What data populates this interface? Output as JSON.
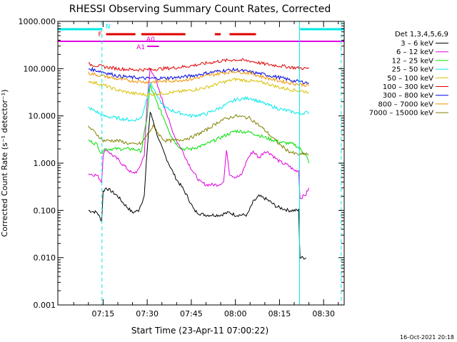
{
  "chart_data": {
    "type": "line",
    "title": "RHESSI Observing Summary Count Rates, Corrected",
    "ylabel": "Corrected Count Rate (s⁻¹ detector⁻¹)",
    "xlabel": "Start Time (23-Apr-11 07:00:22)",
    "timestamp": "16-Oct-2021 20:18",
    "y_scale": "log",
    "ylim": [
      0.001,
      1000
    ],
    "xlim_minutes": [
      -0.4,
      97
    ],
    "y_ticks": [
      {
        "value": 0.001,
        "label": "0.001"
      },
      {
        "value": 0.01,
        "label": "0.010"
      },
      {
        "value": 0.1,
        "label": "0.100"
      },
      {
        "value": 1,
        "label": "1.000"
      },
      {
        "value": 10,
        "label": "10.000"
      },
      {
        "value": 100,
        "label": "100.000"
      },
      {
        "value": 1000,
        "label": "1000.000"
      }
    ],
    "x_ticks": [
      {
        "value": 15,
        "label": "07:15"
      },
      {
        "value": 30,
        "label": "07:30"
      },
      {
        "value": 45,
        "label": "07:45"
      },
      {
        "value": 60,
        "label": "08:00"
      },
      {
        "value": 75,
        "label": "08:15"
      },
      {
        "value": 90,
        "label": "08:30"
      }
    ],
    "legend": {
      "title": "Det 1,3,4,5,6,9",
      "placement": "right",
      "entries": [
        {
          "label": "3 – 6 keV",
          "color": "#000000"
        },
        {
          "label": "6 – 12 keV",
          "color": "#e000e0"
        },
        {
          "label": "12 – 25 keV",
          "color": "#00e000"
        },
        {
          "label": "25 – 50 keV",
          "color": "#00e8e8"
        },
        {
          "label": "50 – 100 keV",
          "color": "#d8c000"
        },
        {
          "label": "100 – 300 keV",
          "color": "#e00000"
        },
        {
          "label": "300 – 800 keV",
          "color": "#0000e0"
        },
        {
          "label": "800 – 7000 keV",
          "color": "#f09000"
        },
        {
          "label": "7000 – 15000 keV",
          "color": "#808000"
        }
      ]
    },
    "flag_labels": {
      "night": "N",
      "flare": "F",
      "attenuator_0": "A0",
      "attenuator_1": "A1"
    },
    "flag_colors": {
      "night": "#00e8e8",
      "flare": "#e00000",
      "attenuator": "#e000e0"
    },
    "flag_segments": {
      "night": [
        [
          -0.4,
          14.6
        ],
        [
          82,
          97
        ]
      ],
      "flare": [
        [
          16,
          26
        ],
        [
          28,
          43
        ],
        [
          53,
          55
        ],
        [
          58,
          67
        ]
      ],
      "saa_line": [
        [
          -0.4,
          97
        ]
      ],
      "attenuator_0": [
        [
          29,
          35
        ]
      ],
      "attenuator_1": [
        [
          30,
          34
        ]
      ]
    },
    "vlines_dashed": [
      14.6,
      96
    ],
    "vlines_solid": [
      81.8
    ],
    "series": [
      {
        "name": "3 – 6 keV",
        "color": "#000000",
        "x": [
          10,
          13,
          14.5,
          15,
          16,
          18,
          20,
          22,
          25,
          27,
          29,
          30,
          31,
          32,
          34,
          36,
          38,
          40,
          42,
          44,
          46,
          48,
          50,
          52,
          54,
          55,
          56,
          58,
          60,
          62,
          64,
          66,
          68,
          70,
          72,
          74,
          76,
          78,
          80,
          81.5,
          82,
          84
        ],
        "y": [
          0.1,
          0.09,
          0.06,
          0.25,
          0.3,
          0.25,
          0.2,
          0.14,
          0.09,
          0.1,
          0.2,
          2,
          12,
          8,
          3,
          1.5,
          0.8,
          0.45,
          0.3,
          0.18,
          0.1,
          0.085,
          0.08,
          0.08,
          0.08,
          0.08,
          0.085,
          0.09,
          0.08,
          0.08,
          0.08,
          0.15,
          0.2,
          0.18,
          0.15,
          0.12,
          0.11,
          0.1,
          0.1,
          0.1,
          0.01,
          0.01
        ]
      },
      {
        "name": "6 – 12 keV",
        "color": "#e000e0",
        "x": [
          10,
          13,
          14.5,
          15,
          16,
          18,
          20,
          22,
          25,
          27,
          29,
          30,
          31,
          32,
          34,
          36,
          38,
          40,
          42,
          44,
          46,
          48,
          50,
          52,
          54,
          56,
          57,
          58,
          60,
          62,
          64,
          66,
          68,
          70,
          72,
          74,
          76,
          78,
          80,
          81.5,
          82,
          84,
          85
        ],
        "y": [
          0.6,
          0.55,
          0.4,
          1.5,
          2,
          1.5,
          1.2,
          0.9,
          0.6,
          0.7,
          1.5,
          20,
          100,
          80,
          35,
          15,
          6,
          3,
          1.8,
          1,
          0.6,
          0.4,
          0.35,
          0.35,
          0.35,
          0.4,
          2,
          0.6,
          0.5,
          0.55,
          1.2,
          1.8,
          1.3,
          1.8,
          1.6,
          1.2,
          1,
          0.9,
          0.7,
          0.7,
          0.18,
          0.22,
          0.3
        ]
      },
      {
        "name": "12 – 25 keV",
        "color": "#00e000",
        "x": [
          10,
          13,
          14.5,
          15,
          20,
          25,
          28,
          30,
          31,
          32,
          34,
          36,
          38,
          40,
          42,
          45,
          50,
          55,
          60,
          65,
          70,
          75,
          80,
          82,
          84,
          85
        ],
        "y": [
          3,
          2.5,
          1.5,
          2,
          2,
          2,
          1.8,
          10,
          45,
          30,
          15,
          8,
          4,
          2.5,
          2,
          2,
          2.5,
          3.5,
          4.8,
          4.5,
          3.5,
          2.8,
          2.5,
          2,
          1.5,
          1
        ]
      },
      {
        "name": "25 – 50 keV",
        "color": "#00e8e8",
        "x": [
          10,
          13,
          15,
          20,
          25,
          28,
          30,
          31,
          32,
          34,
          36,
          40,
          45,
          50,
          55,
          60,
          65,
          70,
          75,
          80,
          82,
          84,
          85
        ],
        "y": [
          15,
          12,
          10,
          9,
          8,
          9,
          25,
          50,
          40,
          22,
          15,
          12,
          10,
          11,
          15,
          22,
          24,
          18,
          14,
          12,
          11,
          12,
          11
        ]
      },
      {
        "name": "50 – 100 keV",
        "color": "#d8c000",
        "x": [
          10,
          15,
          20,
          25,
          30,
          35,
          40,
          45,
          50,
          55,
          60,
          65,
          70,
          75,
          80,
          85
        ],
        "y": [
          55,
          45,
          35,
          30,
          28,
          30,
          32,
          35,
          40,
          50,
          60,
          55,
          50,
          40,
          35,
          32
        ]
      },
      {
        "name": "100 – 300 keV",
        "color": "#e00000",
        "x": [
          10,
          15,
          20,
          25,
          30,
          35,
          40,
          45,
          50,
          55,
          60,
          65,
          70,
          75,
          80,
          85
        ],
        "y": [
          125,
          110,
          100,
          95,
          95,
          100,
          105,
          115,
          130,
          145,
          155,
          145,
          125,
          115,
          105,
          100
        ]
      },
      {
        "name": "300 – 800 keV",
        "color": "#0000e0",
        "x": [
          10,
          15,
          20,
          25,
          30,
          35,
          40,
          45,
          50,
          55,
          60,
          65,
          70,
          75,
          80,
          85
        ],
        "y": [
          100,
          85,
          70,
          65,
          62,
          63,
          65,
          70,
          80,
          90,
          95,
          85,
          75,
          65,
          55,
          50
        ]
      },
      {
        "name": "800 – 7000 keV",
        "color": "#f09000",
        "x": [
          10,
          15,
          20,
          25,
          30,
          35,
          40,
          45,
          50,
          55,
          60,
          65,
          70,
          75,
          80,
          85
        ],
        "y": [
          80,
          70,
          60,
          55,
          52,
          54,
          56,
          60,
          70,
          80,
          88,
          80,
          65,
          55,
          48,
          44
        ]
      },
      {
        "name": "7000 – 15000 keV",
        "color": "#808000",
        "x": [
          10,
          13,
          15,
          20,
          25,
          28,
          30,
          32,
          34,
          36,
          40,
          45,
          50,
          55,
          60,
          65,
          70,
          75,
          78,
          80,
          82,
          84,
          85
        ],
        "y": [
          6,
          4,
          3,
          3,
          2.5,
          2.6,
          4,
          6,
          4,
          3,
          3,
          3.5,
          5,
          8,
          10,
          9,
          5,
          2.5,
          1.8,
          1.6,
          1.5,
          1.6,
          1.5
        ]
      }
    ]
  }
}
